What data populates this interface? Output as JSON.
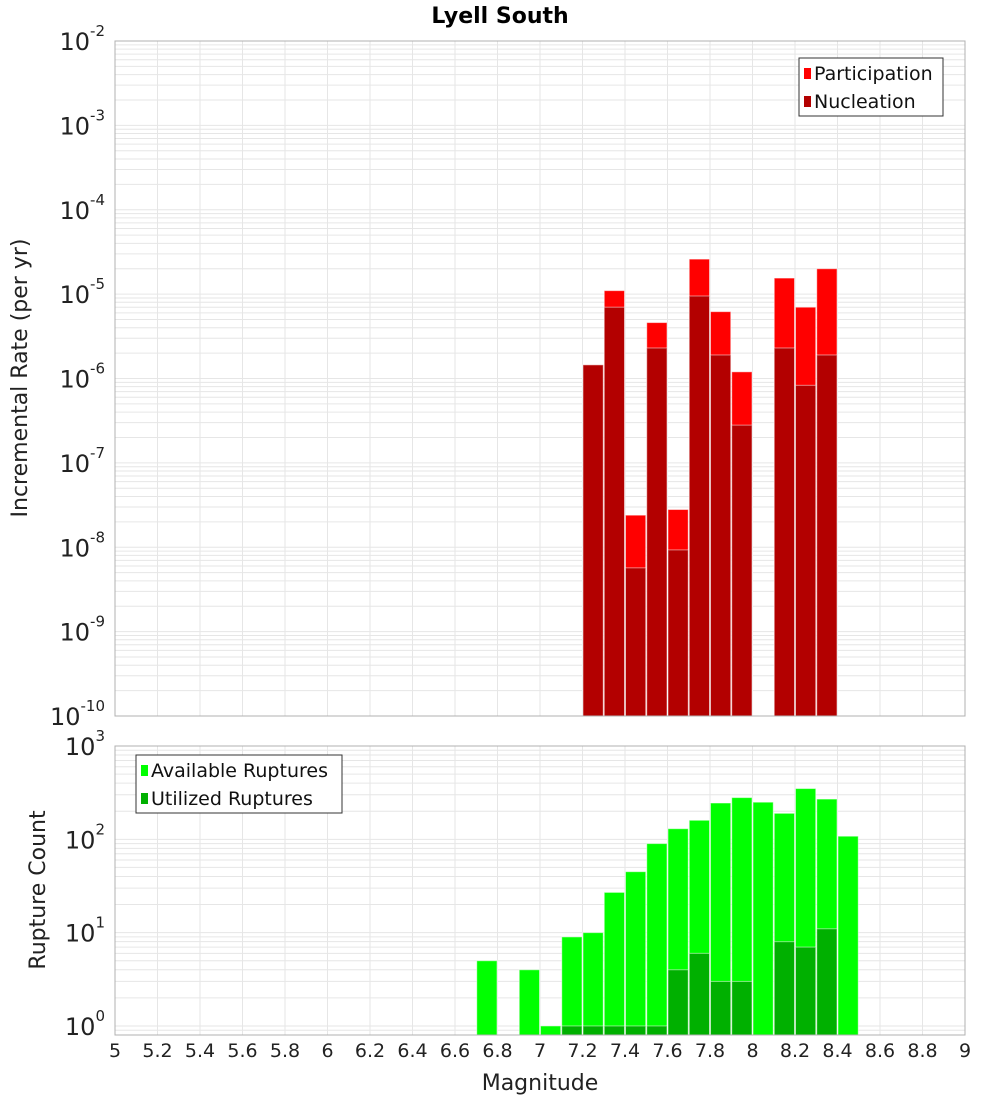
{
  "chart_data": [
    {
      "type": "bar",
      "title": "Lyell South",
      "xlabel": "",
      "ylabel": "Incremental Rate (per yr)",
      "yscale": "log",
      "ylim": [
        1e-10,
        0.01
      ],
      "xlim": [
        5,
        9
      ],
      "bin_width": 0.1,
      "grid": true,
      "legend_position": "top-right",
      "ytick_exponents": [
        "-10",
        "-9",
        "-8",
        "-7",
        "-6",
        "-5",
        "-4",
        "-3",
        "-2"
      ],
      "x": [
        7.25,
        7.35,
        7.45,
        7.55,
        7.65,
        7.75,
        7.85,
        7.95,
        8.15,
        8.25,
        8.35
      ],
      "series": [
        {
          "name": "Participation",
          "color": "#ff0000",
          "values": [
            1.45e-06,
            1.1e-05,
            2.4e-08,
            4.6e-06,
            2.8e-08,
            2.6e-05,
            6.2e-06,
            1.2e-06,
            1.55e-05,
            7e-06,
            2e-05
          ]
        },
        {
          "name": "Nucleation",
          "color": "#b30000",
          "values": [
            1.45e-06,
            7e-06,
            5.7e-09,
            2.3e-06,
            9.3e-09,
            9.5e-06,
            1.9e-06,
            2.8e-07,
            2.3e-06,
            8.3e-07,
            1.9e-06
          ]
        }
      ]
    },
    {
      "type": "bar",
      "xlabel": "Magnitude",
      "ylabel": "Rupture Count",
      "yscale": "log",
      "ylim": [
        0.8,
        1000
      ],
      "xlim": [
        5,
        9
      ],
      "bin_width": 0.1,
      "grid": true,
      "legend_position": "top-left",
      "ytick_exponents": [
        "0",
        "1",
        "2",
        "3"
      ],
      "xticks": [
        "5",
        "5.2",
        "5.4",
        "5.6",
        "5.8",
        "6",
        "6.2",
        "6.4",
        "6.6",
        "6.8",
        "7",
        "7.2",
        "7.4",
        "7.6",
        "7.8",
        "8",
        "8.2",
        "8.4",
        "8.6",
        "8.8",
        "9"
      ],
      "x": [
        6.75,
        6.95,
        7.05,
        7.15,
        7.25,
        7.35,
        7.45,
        7.55,
        7.65,
        7.75,
        7.85,
        7.95,
        8.05,
        8.15,
        8.25,
        8.35,
        8.45
      ],
      "series": [
        {
          "name": "Available Ruptures",
          "color": "#00ff00",
          "values": [
            5,
            4,
            1,
            9,
            10,
            27,
            45,
            90,
            130,
            160,
            245,
            280,
            250,
            190,
            350,
            270,
            108
          ]
        },
        {
          "name": "Utilized Ruptures",
          "color": "#00b000",
          "values": [
            0,
            0,
            0,
            1,
            1,
            1,
            1,
            1,
            4,
            6,
            3,
            3,
            0,
            8,
            7,
            11,
            0
          ]
        }
      ]
    }
  ]
}
